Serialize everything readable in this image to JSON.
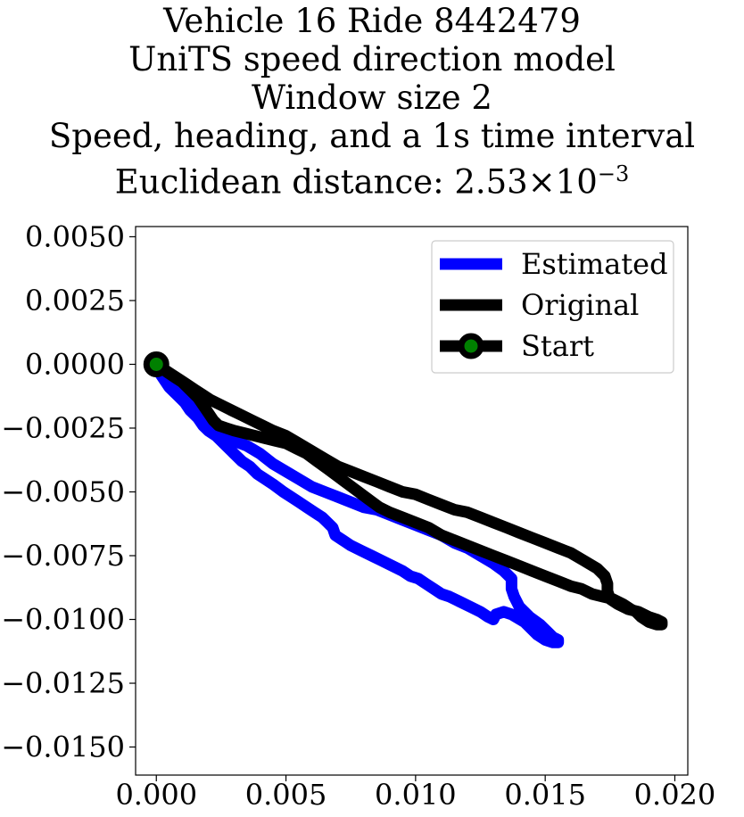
{
  "chart_data": {
    "type": "line",
    "title_lines": [
      "Vehicle 16 Ride 8442479",
      "UniTS speed direction model",
      "Window size 2",
      "Speed, heading, and a 1s time interval"
    ],
    "title_distance": {
      "prefix": "Euclidean distance: ",
      "mantissa": "2.53",
      "times": "×",
      "base": "10",
      "exponent": "−3"
    },
    "xlabel": "",
    "ylabel": "",
    "xlim": [
      -0.0008,
      0.0205
    ],
    "ylim": [
      -0.0161,
      0.0054
    ],
    "x_ticks": [
      {
        "value": 0.0,
        "label": "0.000"
      },
      {
        "value": 0.005,
        "label": "0.005"
      },
      {
        "value": 0.01,
        "label": "0.010"
      },
      {
        "value": 0.015,
        "label": "0.015"
      },
      {
        "value": 0.02,
        "label": "0.020"
      }
    ],
    "y_ticks": [
      {
        "value": 0.005,
        "label": "0.0050"
      },
      {
        "value": 0.0025,
        "label": "0.0025"
      },
      {
        "value": 0.0,
        "label": "0.0000"
      },
      {
        "value": -0.0025,
        "label": "−0.0025"
      },
      {
        "value": -0.005,
        "label": "−0.0050"
      },
      {
        "value": -0.0075,
        "label": "−0.0075"
      },
      {
        "value": -0.01,
        "label": "−0.0100"
      },
      {
        "value": -0.0125,
        "label": "−0.0125"
      },
      {
        "value": -0.015,
        "label": "−0.0150"
      }
    ],
    "grid": false,
    "legend_position": "top-right",
    "series": [
      {
        "name": "Estimated",
        "color": "#0000ff",
        "x": [
          0.0,
          0.0001,
          0.0003,
          0.0005,
          0.0008,
          0.0011,
          0.0013,
          0.0016,
          0.0018,
          0.002,
          0.0023,
          0.0026,
          0.003,
          0.0035,
          0.004,
          0.0045,
          0.005,
          0.0055,
          0.006,
          0.0065,
          0.007,
          0.0075,
          0.008,
          0.0085,
          0.009,
          0.0095,
          0.01,
          0.0105,
          0.011,
          0.0115,
          0.012,
          0.0125,
          0.013,
          0.0134,
          0.0137,
          0.0137,
          0.0138,
          0.014,
          0.0144,
          0.0148,
          0.0151,
          0.0153,
          0.0155,
          0.0155,
          0.0153,
          0.015,
          0.0147,
          0.0142,
          0.0137,
          0.0134,
          0.0131,
          0.013,
          0.0128,
          0.0125,
          0.0121,
          0.0117,
          0.0113,
          0.011,
          0.0107,
          0.0104,
          0.0101,
          0.0098,
          0.0095,
          0.0091,
          0.0087,
          0.0083,
          0.0079,
          0.0075,
          0.0072,
          0.0069,
          0.0068,
          0.0067,
          0.0066,
          0.0064,
          0.0061,
          0.0058,
          0.0055,
          0.0052,
          0.0049,
          0.0045,
          0.0042,
          0.0039,
          0.0036,
          0.0033,
          0.003,
          0.0027,
          0.0024,
          0.0021,
          0.0018,
          0.0015,
          0.0012,
          0.0009,
          0.0006,
          0.0003,
          0.0001,
          0.0
        ],
        "y": [
          0.0,
          -0.0003,
          -0.0006,
          -0.0009,
          -0.0012,
          -0.0015,
          -0.0018,
          -0.0021,
          -0.0024,
          -0.0026,
          -0.0028,
          -0.0029,
          -0.003,
          -0.0032,
          -0.0035,
          -0.0039,
          -0.0042,
          -0.0045,
          -0.0048,
          -0.005,
          -0.0052,
          -0.0054,
          -0.0056,
          -0.0057,
          -0.0059,
          -0.0061,
          -0.0063,
          -0.0065,
          -0.0067,
          -0.007,
          -0.0072,
          -0.0075,
          -0.0078,
          -0.0081,
          -0.0084,
          -0.0088,
          -0.0091,
          -0.0095,
          -0.0099,
          -0.0102,
          -0.0105,
          -0.0107,
          -0.0108,
          -0.0109,
          -0.0109,
          -0.0108,
          -0.0106,
          -0.0101,
          -0.0098,
          -0.0097,
          -0.0098,
          -0.01,
          -0.0099,
          -0.0097,
          -0.0095,
          -0.0093,
          -0.0091,
          -0.009,
          -0.0088,
          -0.0086,
          -0.0084,
          -0.0083,
          -0.0081,
          -0.0079,
          -0.0077,
          -0.0075,
          -0.0073,
          -0.0071,
          -0.0069,
          -0.0067,
          -0.0064,
          -0.0063,
          -0.0062,
          -0.006,
          -0.0058,
          -0.0056,
          -0.0054,
          -0.0052,
          -0.005,
          -0.0047,
          -0.0045,
          -0.0043,
          -0.004,
          -0.0038,
          -0.0035,
          -0.0032,
          -0.0029,
          -0.0026,
          -0.0023,
          -0.0019,
          -0.0015,
          -0.0012,
          -0.0009,
          -0.0006,
          -0.0003,
          0.0
        ]
      },
      {
        "name": "Original",
        "color": "#000000",
        "x": [
          0.0,
          0.0003,
          0.0006,
          0.0009,
          0.0012,
          0.0015,
          0.0018,
          0.0021,
          0.0025,
          0.0029,
          0.0033,
          0.0037,
          0.0041,
          0.0045,
          0.005,
          0.0055,
          0.006,
          0.0065,
          0.007,
          0.0075,
          0.008,
          0.0085,
          0.009,
          0.0095,
          0.01,
          0.0105,
          0.011,
          0.0115,
          0.012,
          0.0125,
          0.013,
          0.0135,
          0.014,
          0.0145,
          0.015,
          0.0155,
          0.016,
          0.0165,
          0.017,
          0.0173,
          0.0174,
          0.0174,
          0.0175,
          0.0178,
          0.0182,
          0.0186,
          0.019,
          0.0193,
          0.0195,
          0.0195,
          0.0193,
          0.019,
          0.0187,
          0.0185,
          0.0183,
          0.018,
          0.0176,
          0.0172,
          0.0168,
          0.0164,
          0.016,
          0.0155,
          0.015,
          0.0145,
          0.014,
          0.0135,
          0.013,
          0.0125,
          0.012,
          0.0115,
          0.011,
          0.0105,
          0.01,
          0.0095,
          0.009,
          0.0086,
          0.0082,
          0.0078,
          0.0074,
          0.007,
          0.0066,
          0.0062,
          0.0058,
          0.0054,
          0.005,
          0.0046,
          0.0042,
          0.0038,
          0.0034,
          0.003,
          0.0027,
          0.0024,
          0.0022,
          0.002,
          0.0018,
          0.0016,
          0.0013,
          0.001,
          0.0007,
          0.0004,
          0.0002,
          0.0
        ],
        "y": [
          0.0,
          -0.0002,
          -0.0004,
          -0.0006,
          -0.0008,
          -0.001,
          -0.0012,
          -0.0014,
          -0.0016,
          -0.0018,
          -0.002,
          -0.0022,
          -0.0024,
          -0.0026,
          -0.0028,
          -0.0031,
          -0.0034,
          -0.0037,
          -0.004,
          -0.0042,
          -0.0044,
          -0.0046,
          -0.0048,
          -0.005,
          -0.0051,
          -0.0053,
          -0.0055,
          -0.0057,
          -0.0058,
          -0.006,
          -0.0062,
          -0.0064,
          -0.0066,
          -0.0068,
          -0.007,
          -0.0072,
          -0.0074,
          -0.0077,
          -0.008,
          -0.0083,
          -0.0086,
          -0.0089,
          -0.0092,
          -0.0094,
          -0.0096,
          -0.0097,
          -0.0099,
          -0.01,
          -0.0101,
          -0.0102,
          -0.0102,
          -0.0101,
          -0.0099,
          -0.0097,
          -0.0096,
          -0.0094,
          -0.0092,
          -0.0091,
          -0.009,
          -0.0088,
          -0.0087,
          -0.0085,
          -0.0083,
          -0.0081,
          -0.0079,
          -0.0077,
          -0.0075,
          -0.0073,
          -0.0071,
          -0.0069,
          -0.0067,
          -0.0064,
          -0.0062,
          -0.006,
          -0.0058,
          -0.0056,
          -0.0053,
          -0.005,
          -0.0047,
          -0.0044,
          -0.0041,
          -0.0038,
          -0.0035,
          -0.0033,
          -0.0031,
          -0.003,
          -0.0029,
          -0.0028,
          -0.0027,
          -0.0026,
          -0.0025,
          -0.0024,
          -0.0022,
          -0.0019,
          -0.0016,
          -0.0013,
          -0.001,
          -0.0007,
          -0.0005,
          -0.0003,
          -0.0001,
          0.0
        ]
      }
    ],
    "start_point": {
      "name": "Start",
      "x": 0.0,
      "y": 0.0,
      "line_color": "#000000",
      "fill_color": "#008000"
    }
  }
}
